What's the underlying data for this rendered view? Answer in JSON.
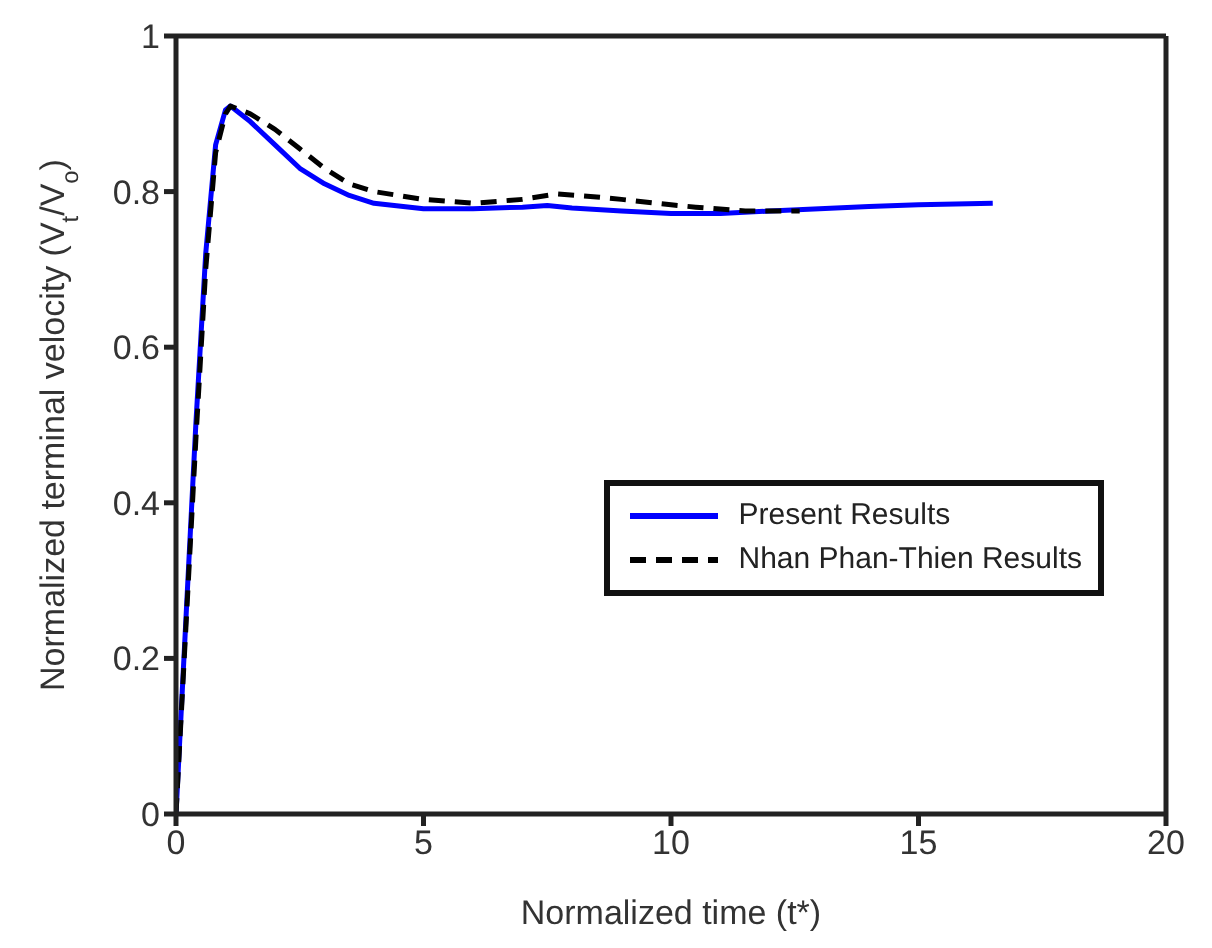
{
  "chart_data": {
    "type": "line",
    "xlabel": "Normalized time (t*)",
    "ylabel": "Normalized terminal velocity (V$_{t}$/V$_{o}$)",
    "xlim": [
      0,
      20
    ],
    "xticks": [
      0,
      5,
      10,
      15,
      20
    ],
    "ylim": [
      0,
      1
    ],
    "yticks": [
      0,
      0.2,
      0.4,
      0.6,
      0.8,
      1
    ],
    "legend": "right",
    "marker": "none",
    "series": [
      {
        "name": "Present Results",
        "color": "#0000ff",
        "line_style": "solid",
        "x": [
          0,
          0.2,
          0.4,
          0.6,
          0.8,
          1.0,
          1.1,
          1.5,
          2,
          2.5,
          3,
          3.5,
          4,
          5,
          6,
          7,
          7.5,
          8,
          9,
          10,
          11,
          12,
          13,
          14,
          15,
          16.5
        ],
        "values": [
          0,
          0.25,
          0.5,
          0.72,
          0.86,
          0.905,
          0.91,
          0.89,
          0.86,
          0.83,
          0.81,
          0.795,
          0.785,
          0.778,
          0.778,
          0.78,
          0.782,
          0.779,
          0.775,
          0.772,
          0.772,
          0.775,
          0.778,
          0.781,
          0.783,
          0.785
        ]
      },
      {
        "name": "Nhan Phan-Thien Results",
        "color": "#000000",
        "line_style": "dashed",
        "x": [
          0,
          0.2,
          0.4,
          0.6,
          0.8,
          1.0,
          1.1,
          1.5,
          2,
          2.5,
          3,
          3.5,
          4,
          5,
          6,
          7,
          7.7,
          8.5,
          9,
          10,
          10.5,
          11.5,
          12.6
        ],
        "values": [
          0,
          0.24,
          0.48,
          0.7,
          0.85,
          0.9,
          0.91,
          0.9,
          0.88,
          0.855,
          0.83,
          0.81,
          0.8,
          0.79,
          0.785,
          0.79,
          0.797,
          0.793,
          0.79,
          0.783,
          0.78,
          0.775,
          0.775
        ]
      }
    ]
  }
}
